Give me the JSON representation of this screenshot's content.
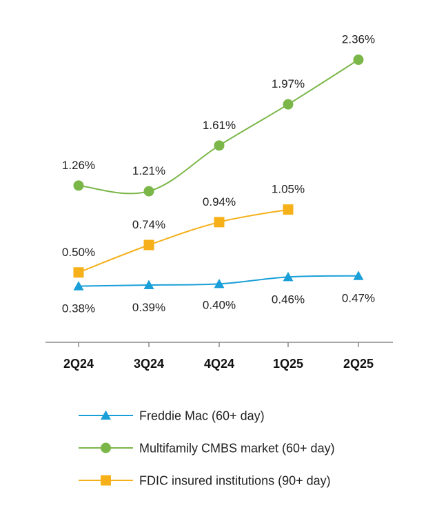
{
  "chart_data": {
    "type": "line",
    "categories": [
      "2Q24",
      "3Q24",
      "4Q24",
      "1Q25",
      "2Q25"
    ],
    "ylabel": "",
    "xlabel": "",
    "ylim": [
      0,
      2.5
    ],
    "series": [
      {
        "name": "Freddie Mac (60+ day)",
        "color": "#1a9fd8",
        "marker": "triangle",
        "values": [
          0.38,
          0.39,
          0.4,
          0.46,
          0.47
        ],
        "labels": [
          "0.38%",
          "0.39%",
          "0.40%",
          "0.46%",
          "0.47%"
        ]
      },
      {
        "name": "Multifamily CMBS market (60+ day)",
        "color": "#7ab648",
        "marker": "circle",
        "values": [
          1.26,
          1.21,
          1.61,
          1.97,
          2.36
        ],
        "labels": [
          "1.26%",
          "1.21%",
          "1.61%",
          "1.97%",
          "2.36%"
        ]
      },
      {
        "name": "FDIC insured institutions (90+ day)",
        "color": "#f5b01a",
        "marker": "square",
        "values": [
          0.5,
          0.74,
          0.94,
          1.05,
          null
        ],
        "labels": [
          "0.50%",
          "0.74%",
          "0.94%",
          "1.05%",
          null
        ]
      }
    ]
  }
}
